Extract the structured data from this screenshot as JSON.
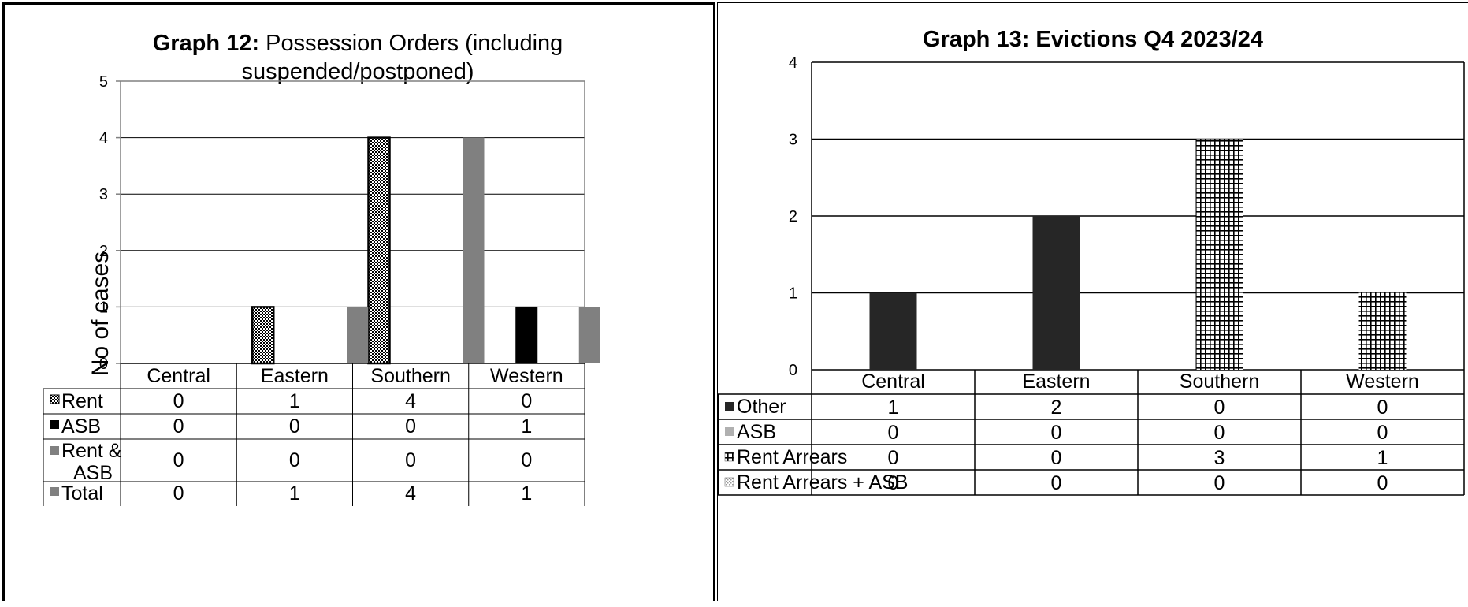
{
  "charts": [
    {
      "id": "graph12",
      "title_bold": "Graph 12:",
      "title_rest_line1": "Possession Orders (including",
      "title_line2": "suspended/postponed)",
      "ylabel": "No of cases",
      "legend_rows": [
        {
          "line1": "Rent",
          "line2": "",
          "icon": "checker-pattern-icon"
        },
        {
          "line1": "ASB",
          "line2": "",
          "icon": "black-square-icon"
        },
        {
          "line1": "Rent &",
          "line2": "ASB",
          "icon": "gray-square-icon"
        },
        {
          "line1": "Total",
          "line2": "",
          "icon": "gray-square-icon"
        }
      ]
    },
    {
      "id": "graph13",
      "title": "Graph 13: Evictions Q4 2023/24",
      "legend_rows": [
        {
          "line1": "Other",
          "icon": "dark-square-icon"
        },
        {
          "line1": "ASB",
          "icon": "light-gray-square-icon"
        },
        {
          "line1": "Rent Arrears",
          "icon": "grid-pattern-icon"
        },
        {
          "line1": "Rent Arrears + ASB",
          "icon": "dotted-pattern-icon"
        }
      ]
    }
  ],
  "colors": {
    "rent_pattern": "#000000",
    "asb_12": "#000000",
    "rent_asb_12": "#808080",
    "total_12": "#808080",
    "other_13": "#262626",
    "asb_13": "#b0b0b0",
    "rent_arrears_13": "#000000",
    "gridline": "#000000"
  },
  "chart_data": [
    {
      "type": "bar",
      "title": "Graph 12: Possession Orders (including suspended/postponed)",
      "ylabel": "No of cases",
      "categories": [
        "Central",
        "Eastern",
        "Southern",
        "Western"
      ],
      "ylim": [
        0,
        5
      ],
      "yticks": [
        0,
        1,
        2,
        3,
        4,
        5
      ],
      "grid": true,
      "legend": "data-table",
      "series": [
        {
          "name": "Rent",
          "values": [
            0,
            1,
            4,
            0
          ]
        },
        {
          "name": "ASB",
          "values": [
            0,
            0,
            0,
            1
          ]
        },
        {
          "name": "Rent & ASB",
          "values": [
            0,
            0,
            0,
            0
          ]
        },
        {
          "name": "Total",
          "values": [
            0,
            1,
            4,
            1
          ]
        }
      ]
    },
    {
      "type": "bar",
      "title": "Graph 13: Evictions Q4 2023/24",
      "categories": [
        "Central",
        "Eastern",
        "Southern",
        "Western"
      ],
      "ylim": [
        0,
        4
      ],
      "yticks": [
        0,
        1,
        2,
        3,
        4
      ],
      "grid": true,
      "legend": "data-table",
      "stacked": true,
      "series": [
        {
          "name": "Other",
          "values": [
            1,
            2,
            0,
            0
          ]
        },
        {
          "name": "ASB",
          "values": [
            0,
            0,
            0,
            0
          ]
        },
        {
          "name": "Rent Arrears",
          "values": [
            0,
            0,
            3,
            1
          ]
        },
        {
          "name": "Rent Arrears + ASB",
          "values": [
            0,
            0,
            0,
            0
          ]
        }
      ]
    }
  ]
}
